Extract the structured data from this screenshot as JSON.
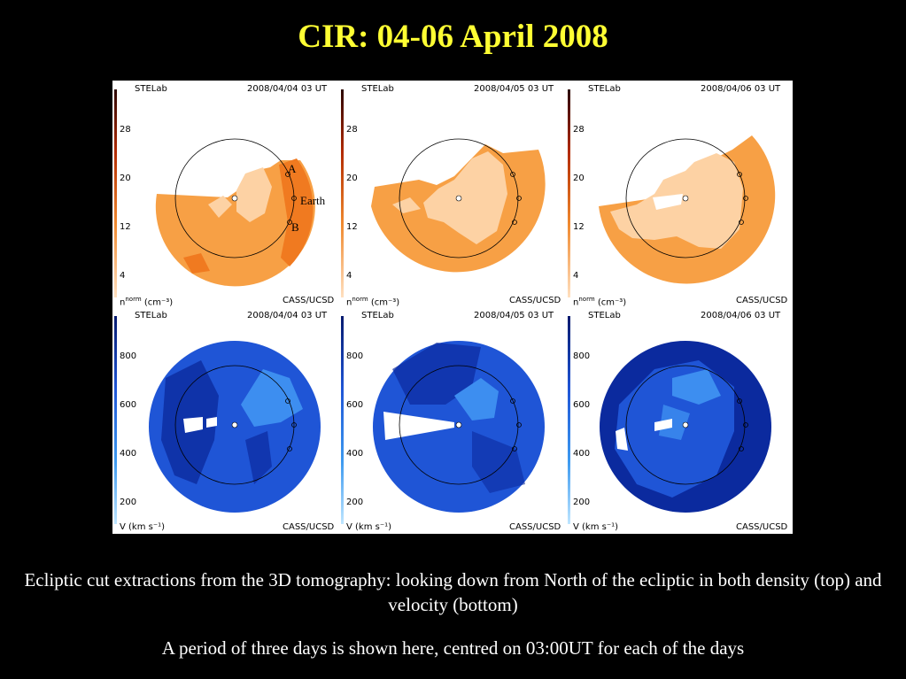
{
  "title": "CIR: 04-06 April 2008",
  "figure": {
    "panels": [
      {
        "row": "density",
        "source": "STELab",
        "timestamp": "2008/04/04 03 UT",
        "credit": "CASS/UCSD",
        "unit": "n",
        "unit_super": "norm",
        "unit_rest": "(cm⁻³)",
        "ticks": [
          "28",
          "20",
          "12",
          "4"
        ]
      },
      {
        "row": "density",
        "source": "STELab",
        "timestamp": "2008/04/05 03 UT",
        "credit": "CASS/UCSD",
        "unit": "n",
        "unit_super": "norm",
        "unit_rest": "(cm⁻³)",
        "ticks": [
          "28",
          "20",
          "12",
          "4"
        ]
      },
      {
        "row": "density",
        "source": "STELab",
        "timestamp": "2008/04/06 03 UT",
        "credit": "CASS/UCSD",
        "unit": "n",
        "unit_super": "norm",
        "unit_rest": "(cm⁻³)",
        "ticks": [
          "28",
          "20",
          "12",
          "4"
        ]
      },
      {
        "row": "velocity",
        "source": "STELab",
        "timestamp": "2008/04/04 03 UT",
        "credit": "CASS/UCSD",
        "unit": "V",
        "unit_super": "",
        "unit_rest": "(km s⁻¹)",
        "ticks": [
          "800",
          "600",
          "400",
          "200"
        ]
      },
      {
        "row": "velocity",
        "source": "STELab",
        "timestamp": "2008/04/05 03 UT",
        "credit": "CASS/UCSD",
        "unit": "V",
        "unit_super": "",
        "unit_rest": "(km s⁻¹)",
        "ticks": [
          "800",
          "600",
          "400",
          "200"
        ]
      },
      {
        "row": "velocity",
        "source": "STELab",
        "timestamp": "2008/04/06 03 UT",
        "credit": "CASS/UCSD",
        "unit": "V",
        "unit_super": "",
        "unit_rest": "(km s⁻¹)",
        "ticks": [
          "800",
          "600",
          "400",
          "200"
        ]
      }
    ],
    "annotations": {
      "a": "A",
      "earth": "Earth",
      "b": "B"
    },
    "colors": {
      "density_light": "#fdd2a4",
      "density_mid": "#f7a045",
      "density_dark": "#f07a20",
      "velocity_dark": "#0b2a9e",
      "velocity_mid": "#1f55d6",
      "velocity_light": "#3d8ef0"
    }
  },
  "caption": {
    "line1": "Ecliptic cut extractions from the 3D tomography: looking down from North of the ecliptic in both density (top) and velocity (bottom)",
    "line2": "A period of three days is shown here, centred on 03:00UT for each of the days"
  }
}
